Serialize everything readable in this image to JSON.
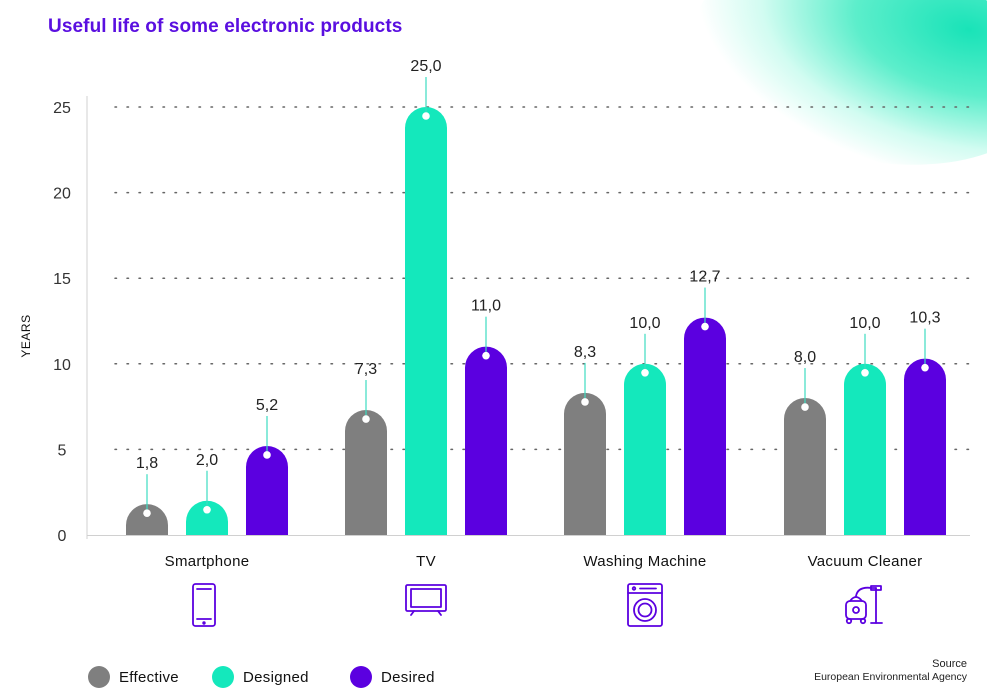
{
  "chart_data": {
    "type": "bar",
    "title": "Useful life of some electronic products",
    "xlabel": "",
    "ylabel": "YEARS",
    "ylim": [
      0,
      25
    ],
    "yticks": [
      0,
      5,
      10,
      15,
      20,
      25
    ],
    "categories": [
      "Smartphone",
      "TV",
      "Washing Machine",
      "Vacuum Cleaner"
    ],
    "category_icons": [
      "smartphone-icon",
      "tv-icon",
      "washing-machine-icon",
      "vacuum-cleaner-icon"
    ],
    "series": [
      {
        "name": "Effective",
        "color": "#7f7f7f",
        "values": [
          1.8,
          7.3,
          8.3,
          8.0
        ],
        "labels": [
          "1,8",
          "7,3",
          "8,3",
          "8,0"
        ]
      },
      {
        "name": "Designed",
        "color": "#14e8bc",
        "values": [
          2.0,
          25.0,
          10.0,
          10.0
        ],
        "labels": [
          "2,0",
          "25,0",
          "10,0",
          "10,0"
        ]
      },
      {
        "name": "Desired",
        "color": "#5b00e0",
        "values": [
          5.2,
          11.0,
          12.7,
          10.3
        ],
        "labels": [
          "5,2",
          "11,0",
          "12,7",
          "10,3"
        ]
      }
    ],
    "grid": true,
    "legend": "bottom-left"
  },
  "source": {
    "title": "Source",
    "text": "European Environmental Agency"
  }
}
